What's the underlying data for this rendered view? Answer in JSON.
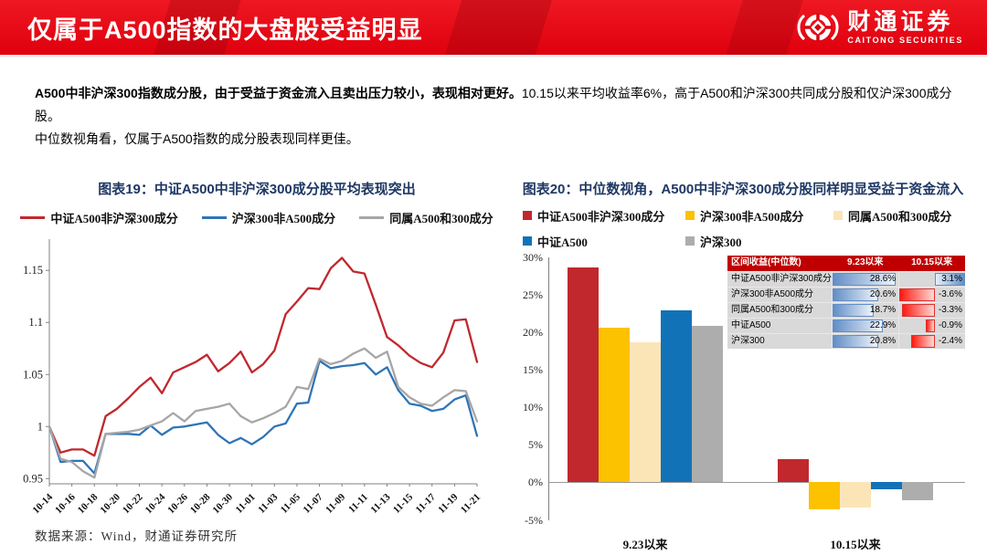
{
  "header": {
    "title": "仅属于A500指数的大盘股受益明显",
    "logo": {
      "brand_cn": "财通证券",
      "brand_en": "CAITONG SECURITIES"
    }
  },
  "summary": {
    "bold": "A500中非沪深300指数成分股，由于受益于资金流入且卖出压力较小，表现相对更好。",
    "rest": "10.15以来平均收益率6%，高于A500和沪深300共同成分股和仅沪深300成分股。",
    "line2": "中位数视角看，仅属于A500指数的成分股表现同样更佳。"
  },
  "colors": {
    "banner_red": "#e8121a",
    "chart_title_navy": "#1f3864",
    "table_header_red": "#c00000",
    "table_row_gray": "#d9d9d9"
  },
  "chart_data": [
    {
      "type": "line",
      "title": "图表19：中证A500中非沪深300成分股平均表现突出",
      "x_tick_labels": [
        "10-14",
        "10-16",
        "10-18",
        "10-20",
        "10-22",
        "10-24",
        "10-26",
        "10-28",
        "10-30",
        "11-01",
        "11-03",
        "11-05",
        "11-07",
        "11-09",
        "11-11",
        "11-13",
        "11-15",
        "11-17",
        "11-19",
        "11-21"
      ],
      "ylim": [
        0.945,
        1.18
      ],
      "yticks": [
        0.95,
        1,
        1.05,
        1.1,
        1.15
      ],
      "grid": false,
      "legend_position": "top",
      "series": [
        {
          "name": "中证A500非沪深300成分",
          "color": "#c0282e",
          "values": [
            1.0,
            0.975,
            0.978,
            0.978,
            0.972,
            1.01,
            1.017,
            1.027,
            1.038,
            1.047,
            1.032,
            1.052,
            1.057,
            1.062,
            1.069,
            1.053,
            1.061,
            1.072,
            1.052,
            1.06,
            1.073,
            1.108,
            1.12,
            1.133,
            1.132,
            1.152,
            1.162,
            1.149,
            1.147,
            1.117,
            1.086,
            1.078,
            1.068,
            1.061,
            1.057,
            1.071,
            1.102,
            1.103,
            1.062
          ]
        },
        {
          "name": "沪深300非A500成分",
          "color": "#2e75b6",
          "values": [
            1.0,
            0.966,
            0.967,
            0.967,
            0.955,
            0.993,
            0.993,
            0.993,
            0.992,
            1.001,
            0.992,
            0.999,
            1.0,
            1.002,
            1.004,
            0.992,
            0.984,
            0.989,
            0.983,
            0.99,
            1.0,
            1.003,
            1.022,
            1.023,
            1.063,
            1.056,
            1.058,
            1.059,
            1.061,
            1.05,
            1.057,
            1.035,
            1.022,
            1.02,
            1.015,
            1.017,
            1.026,
            1.03,
            0.991
          ]
        },
        {
          "name": "同属A500和300成分",
          "color": "#a6a6a6",
          "values": [
            1.0,
            0.969,
            0.966,
            0.957,
            0.951,
            0.993,
            0.994,
            0.995,
            0.997,
            1.001,
            1.005,
            1.013,
            1.005,
            1.015,
            1.017,
            1.019,
            1.022,
            1.01,
            1.004,
            1.008,
            1.013,
            1.019,
            1.038,
            1.036,
            1.065,
            1.06,
            1.063,
            1.07,
            1.075,
            1.066,
            1.072,
            1.038,
            1.028,
            1.022,
            1.02,
            1.028,
            1.035,
            1.034,
            1.005
          ]
        }
      ]
    },
    {
      "type": "bar",
      "title": "图表20：中位数视角，A500中非沪深300成分股同样明显受益于资金流入",
      "categories": [
        "9.23以来",
        "10.15以来"
      ],
      "ylim": [
        -5,
        30
      ],
      "yticks_percent": [
        30,
        25,
        20,
        15,
        10,
        5,
        0,
        -5
      ],
      "grid": false,
      "legend_position": "top",
      "series": [
        {
          "name": "中证A500非沪深300成分",
          "color": "#c0282e",
          "values": [
            28.6,
            3.1
          ]
        },
        {
          "name": "沪深300非A500成分",
          "color": "#fcc200",
          "values": [
            20.6,
            -3.6
          ]
        },
        {
          "name": "同属A500和300成分",
          "color": "#fbe5b6",
          "values": [
            18.7,
            -3.3
          ]
        },
        {
          "name": "中证A500",
          "color": "#1272b8",
          "values": [
            22.9,
            -0.9
          ]
        },
        {
          "name": "沪深300",
          "color": "#adadad",
          "values": [
            20.8,
            -2.4
          ]
        }
      ],
      "table": {
        "headers": [
          "区间收益(中位数)",
          "9.23以来",
          "10.15以来"
        ],
        "rows": [
          [
            "中证A500非沪深300成分",
            "28.6%",
            "3.1%"
          ],
          [
            "沪深300非A500成分",
            "20.6%",
            "-3.6%"
          ],
          [
            "同属A500和300成分",
            "18.7%",
            "-3.3%"
          ],
          [
            "中证A500",
            "22.9%",
            "-0.9%"
          ],
          [
            "沪深300",
            "20.8%",
            "-2.4%"
          ]
        ]
      }
    }
  ],
  "footer": {
    "source": "数据来源：Wind，财通证券研究所"
  }
}
